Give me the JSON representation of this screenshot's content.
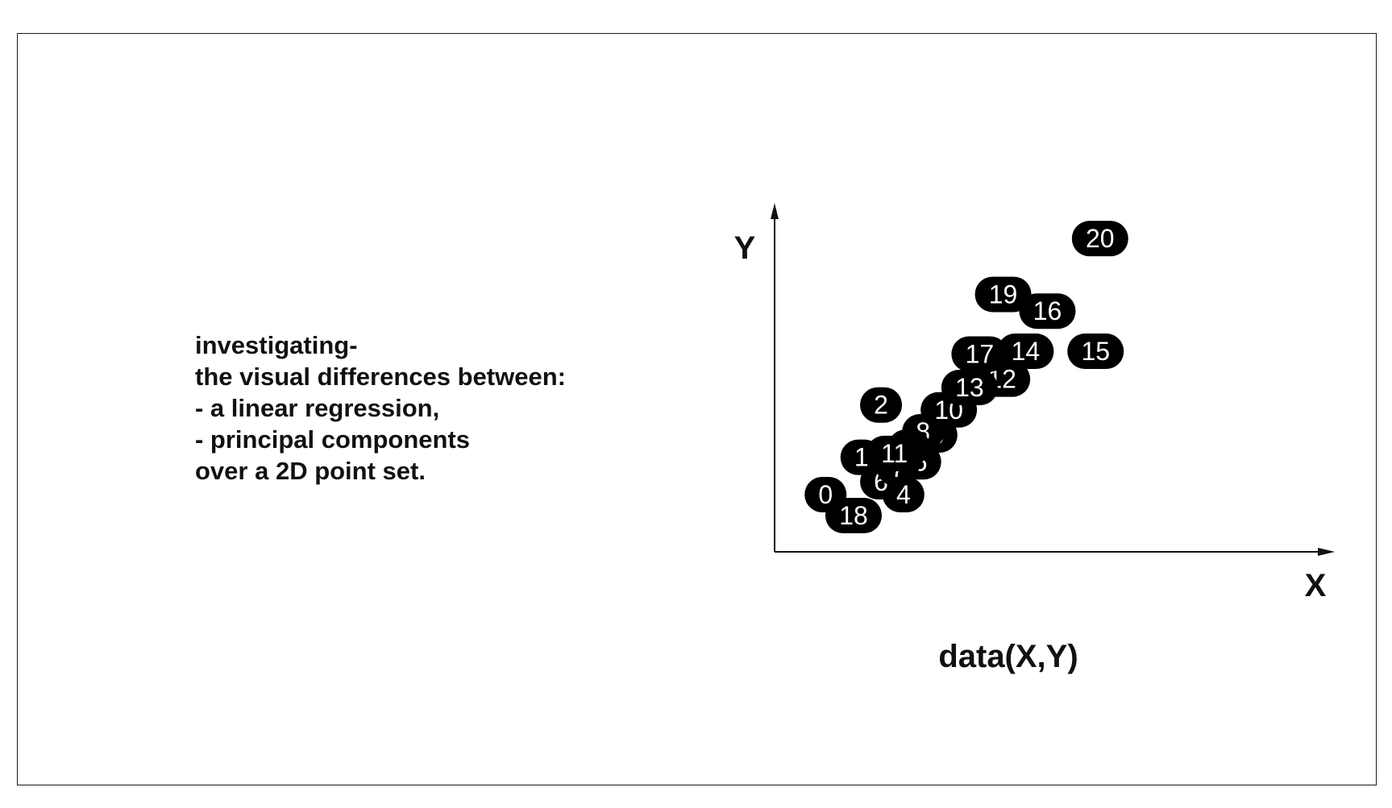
{
  "description": {
    "lines": [
      "investigating-",
      "the visual differences between:",
      "- a linear regression,",
      "- principal components",
      "over a 2D point set."
    ]
  },
  "chart_data": {
    "type": "scatter",
    "title": "",
    "caption": "data(X,Y)",
    "xlabel": "X",
    "ylabel": "Y",
    "xlim": [
      0,
      1
    ],
    "ylim": [
      0,
      1
    ],
    "grid": false,
    "legend": "none",
    "marker_color": "#000000",
    "marker_label_color": "#ffffff",
    "points": [
      {
        "label": "0",
        "x": 0.091,
        "y": 0.164
      },
      {
        "label": "1",
        "x": 0.155,
        "y": 0.271
      },
      {
        "label": "2",
        "x": 0.19,
        "y": 0.421
      },
      {
        "label": "3",
        "x": 0.289,
        "y": 0.335
      },
      {
        "label": "4",
        "x": 0.23,
        "y": 0.164
      },
      {
        "label": "5",
        "x": 0.26,
        "y": 0.258
      },
      {
        "label": "6",
        "x": 0.19,
        "y": 0.201
      },
      {
        "label": "7",
        "x": 0.22,
        "y": 0.24
      },
      {
        "label": "8",
        "x": 0.265,
        "y": 0.344
      },
      {
        "label": "9",
        "x": 0.24,
        "y": 0.3
      },
      {
        "label": "10",
        "x": 0.311,
        "y": 0.407
      },
      {
        "label": "11",
        "x": 0.214,
        "y": 0.282
      },
      {
        "label": "12",
        "x": 0.406,
        "y": 0.495
      },
      {
        "label": "13",
        "x": 0.348,
        "y": 0.471
      },
      {
        "label": "14",
        "x": 0.448,
        "y": 0.575
      },
      {
        "label": "15",
        "x": 0.573,
        "y": 0.575
      },
      {
        "label": "16",
        "x": 0.487,
        "y": 0.69
      },
      {
        "label": "17",
        "x": 0.366,
        "y": 0.567
      },
      {
        "label": "18",
        "x": 0.141,
        "y": 0.104
      },
      {
        "label": "19",
        "x": 0.408,
        "y": 0.738
      },
      {
        "label": "20",
        "x": 0.581,
        "y": 0.898
      }
    ]
  }
}
